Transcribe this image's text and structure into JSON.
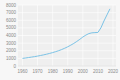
{
  "chart_data": {
    "type": "line",
    "x": [
      1960,
      1962,
      1964,
      1966,
      1968,
      1970,
      1972,
      1974,
      1976,
      1978,
      1980,
      1982,
      1984,
      1986,
      1988,
      1990,
      1992,
      1994,
      1996,
      1998,
      2000,
      2002,
      2004,
      2006,
      2008,
      2010,
      2012,
      2014,
      2016,
      2018
    ],
    "values": [
      1000,
      1050,
      1110,
      1170,
      1230,
      1300,
      1380,
      1460,
      1550,
      1650,
      1760,
      1880,
      2010,
      2160,
      2330,
      2520,
      2730,
      2960,
      3220,
      3500,
      3800,
      4050,
      4250,
      4350,
      4380,
      4400,
      5000,
      5900,
      6700,
      7500
    ],
    "color": "#7cc3e6",
    "xlim": [
      1957,
      2022
    ],
    "xticks": [
      1960,
      1970,
      1980,
      1990,
      2000,
      2010,
      2020
    ],
    "ylim": [
      0,
      8000
    ],
    "yticks": [
      0,
      1000,
      2000,
      3000,
      4000,
      5000,
      6000,
      7000,
      8000
    ],
    "grid": true
  }
}
